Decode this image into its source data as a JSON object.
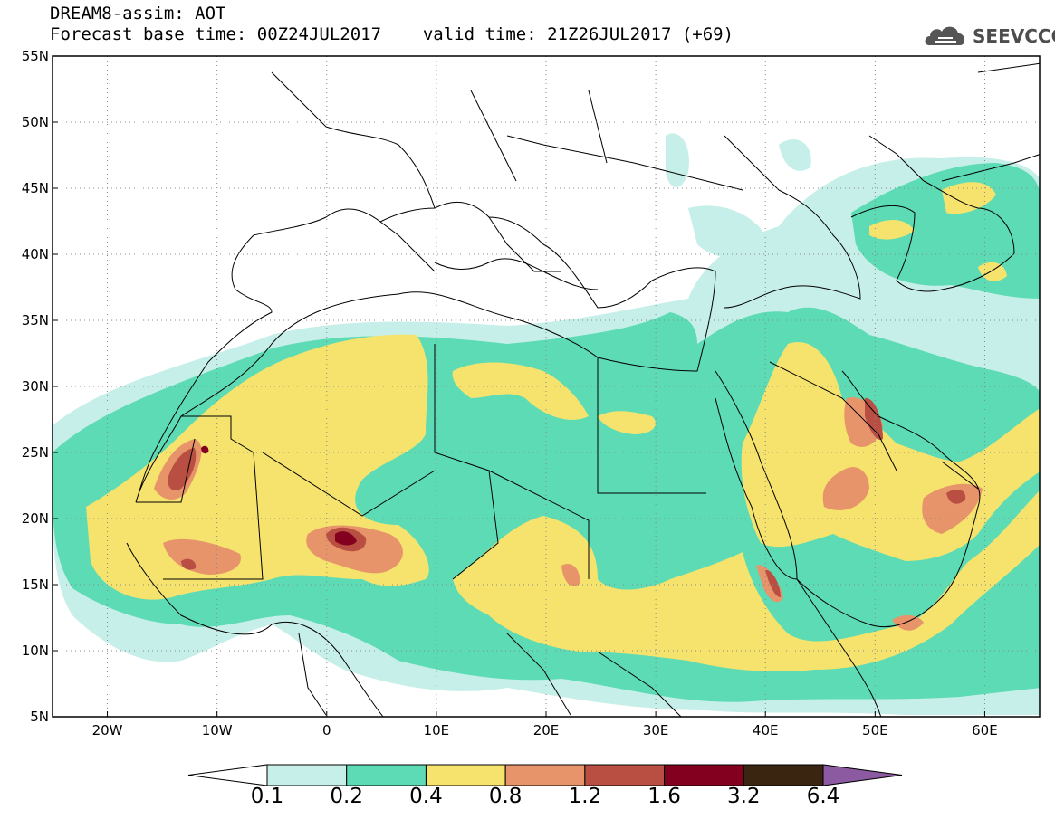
{
  "header": {
    "model": "DREAM8-assim: AOT",
    "base_label": "Forecast base time:",
    "base_time": "00Z24JUL2017",
    "valid_label": "valid time:",
    "valid_time": "21Z26JUL2017 (+69)"
  },
  "logo": {
    "text": "SEEVCCC",
    "icon": "cloud-logo-icon"
  },
  "map": {
    "lon_range": [
      -25,
      65
    ],
    "lat_range": [
      5,
      55
    ],
    "lat_labels": [
      "55N",
      "50N",
      "45N",
      "40N",
      "35N",
      "30N",
      "25N",
      "20N",
      "15N",
      "10N",
      "5N"
    ],
    "lat_values": [
      55,
      50,
      45,
      40,
      35,
      30,
      25,
      20,
      15,
      10,
      5
    ],
    "lon_labels": [
      "20W",
      "10W",
      "0",
      "10E",
      "20E",
      "30E",
      "40E",
      "50E",
      "60E"
    ],
    "lon_values": [
      -20,
      -10,
      0,
      10,
      20,
      30,
      40,
      50,
      60
    ],
    "grid": "dotted"
  },
  "colorbar": {
    "thresholds": [
      "0.1",
      "0.2",
      "0.4",
      "0.8",
      "1.2",
      "1.6",
      "3.2",
      "6.4"
    ],
    "colors": [
      "#ffffff",
      "#c7efe9",
      "#5ddbb4",
      "#f5e36e",
      "#e8946a",
      "#b84f42",
      "#83001f",
      "#3a2510",
      "#8b5aa0"
    ]
  }
}
